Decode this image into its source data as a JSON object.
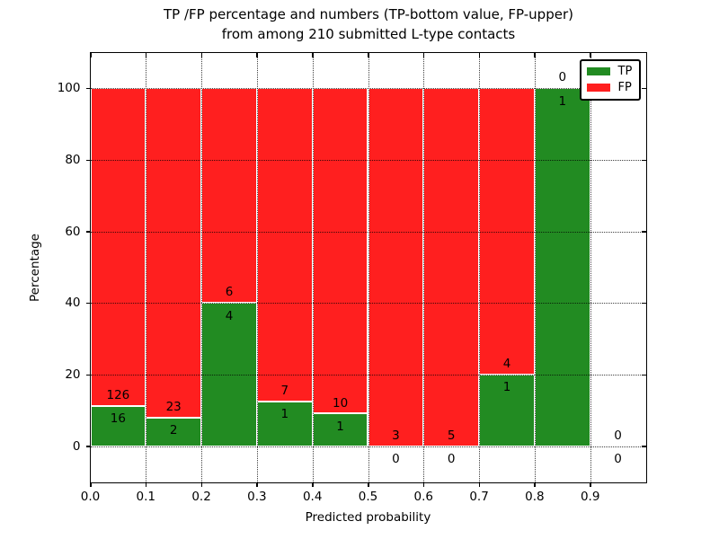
{
  "title": {
    "line1": "TP /FP percentage and numbers (TP-bottom value, FP-upper)",
    "line2": "from among 210 submitted L-type contacts"
  },
  "axes": {
    "xlabel": "Predicted probability",
    "ylabel": "Percentage",
    "ytick_labels": [
      "0",
      "20",
      "40",
      "60",
      "80",
      "100"
    ],
    "xtick_labels": [
      "0.0",
      "0.1",
      "0.2",
      "0.3",
      "0.4",
      "0.5",
      "0.6",
      "0.7",
      "0.8",
      "0.9"
    ]
  },
  "legend": {
    "items": [
      {
        "label": "TP",
        "color": "#228B22"
      },
      {
        "label": "FP",
        "color": "#FF1F1F"
      }
    ]
  },
  "colors": {
    "tp": "#228B22",
    "fp": "#FF1F1F",
    "grid": "#000000",
    "bar_edge": "#ffffff",
    "frame": "#000000"
  },
  "chart_data": {
    "type": "bar",
    "stacked": true,
    "normalized_to_percent": true,
    "title": "TP /FP percentage and numbers (TP-bottom value, FP-upper) from among 210 submitted L-type contacts",
    "xlabel": "Predicted probability",
    "ylabel": "Percentage",
    "xlim": [
      0.0,
      1.0
    ],
    "ylim": [
      -10,
      110
    ],
    "yticks": [
      0,
      20,
      40,
      60,
      80,
      100
    ],
    "xticks": [
      0.0,
      0.1,
      0.2,
      0.3,
      0.4,
      0.5,
      0.6,
      0.7,
      0.8,
      0.9
    ],
    "grid": true,
    "legend_position": "upper right",
    "total_contacts": 210,
    "series": [
      {
        "name": "TP",
        "color": "#228B22",
        "counts": [
          16,
          2,
          4,
          1,
          1,
          0,
          0,
          1,
          1,
          0
        ]
      },
      {
        "name": "FP",
        "color": "#FF1F1F",
        "counts": [
          126,
          23,
          6,
          7,
          10,
          3,
          5,
          4,
          0,
          0
        ]
      }
    ],
    "bins": [
      {
        "x0": 0.0,
        "x1": 0.1,
        "tp": 16,
        "fp": 126,
        "tp_pct": 11.27,
        "fp_pct": 88.73
      },
      {
        "x0": 0.1,
        "x1": 0.2,
        "tp": 2,
        "fp": 23,
        "tp_pct": 8.0,
        "fp_pct": 92.0
      },
      {
        "x0": 0.2,
        "x1": 0.3,
        "tp": 4,
        "fp": 6,
        "tp_pct": 40.0,
        "fp_pct": 60.0
      },
      {
        "x0": 0.3,
        "x1": 0.4,
        "tp": 1,
        "fp": 7,
        "tp_pct": 12.5,
        "fp_pct": 87.5
      },
      {
        "x0": 0.4,
        "x1": 0.5,
        "tp": 1,
        "fp": 10,
        "tp_pct": 9.09,
        "fp_pct": 90.91
      },
      {
        "x0": 0.5,
        "x1": 0.6,
        "tp": 0,
        "fp": 3,
        "tp_pct": 0.0,
        "fp_pct": 100.0
      },
      {
        "x0": 0.6,
        "x1": 0.7,
        "tp": 0,
        "fp": 5,
        "tp_pct": 0.0,
        "fp_pct": 100.0
      },
      {
        "x0": 0.7,
        "x1": 0.8,
        "tp": 1,
        "fp": 4,
        "tp_pct": 20.0,
        "fp_pct": 80.0
      },
      {
        "x0": 0.8,
        "x1": 0.9,
        "tp": 1,
        "fp": 0,
        "tp_pct": 100.0,
        "fp_pct": 0.0
      },
      {
        "x0": 0.9,
        "x1": 1.0,
        "tp": 0,
        "fp": 0,
        "tp_pct": 0.0,
        "fp_pct": 0.0
      }
    ]
  }
}
